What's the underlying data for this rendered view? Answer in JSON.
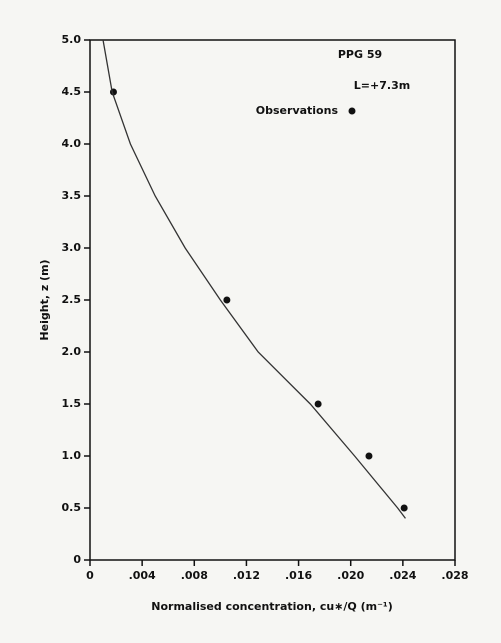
{
  "chart_data": {
    "type": "scatter",
    "xlabel": "Normalised concentration, cu∗/Q (m⁻¹)",
    "ylabel": "Height, z (m)",
    "annotations": [
      "PPG 59",
      "L=+7.3m"
    ],
    "xlim": [
      0,
      0.028
    ],
    "ylim": [
      0,
      5.0
    ],
    "xticks": [
      0,
      {
        "value": 0.004,
        "label": ".004"
      },
      {
        "value": 0.008,
        "label": ".008"
      },
      {
        "value": 0.012,
        "label": ".012"
      },
      {
        "value": 0.016,
        "label": ".016"
      },
      {
        "value": 0.02,
        "label": ".020"
      },
      {
        "value": 0.024,
        "label": ".024"
      },
      {
        "value": 0.028,
        "label": ".028"
      }
    ],
    "yticks": [
      0,
      0.5,
      {
        "value": 1.0,
        "label": "1.0"
      },
      1.5,
      {
        "value": 2.0,
        "label": "2.0"
      },
      2.5,
      {
        "value": 3.0,
        "label": "3.0"
      },
      3.5,
      {
        "value": 4.0,
        "label": "4.0"
      },
      4.5,
      {
        "value": 5.0,
        "label": "5.0"
      }
    ],
    "series": [
      {
        "name": "Observations",
        "color": "#111111",
        "x": [
          0.0018,
          0.0105,
          0.0175,
          0.0214,
          0.0241
        ],
        "values": [
          4.5,
          2.5,
          1.5,
          1.0,
          0.5
        ]
      },
      {
        "type": "line",
        "color": "#333333",
        "x": [
          0.001,
          0.0017,
          0.0031,
          0.005,
          0.0073,
          0.01,
          0.0129,
          0.0169,
          0.0203,
          0.0236,
          0.0242
        ],
        "values": [
          5.0,
          4.5,
          4.0,
          3.5,
          3.0,
          2.5,
          2.0,
          1.5,
          1.0,
          0.5,
          0.4
        ]
      }
    ]
  }
}
